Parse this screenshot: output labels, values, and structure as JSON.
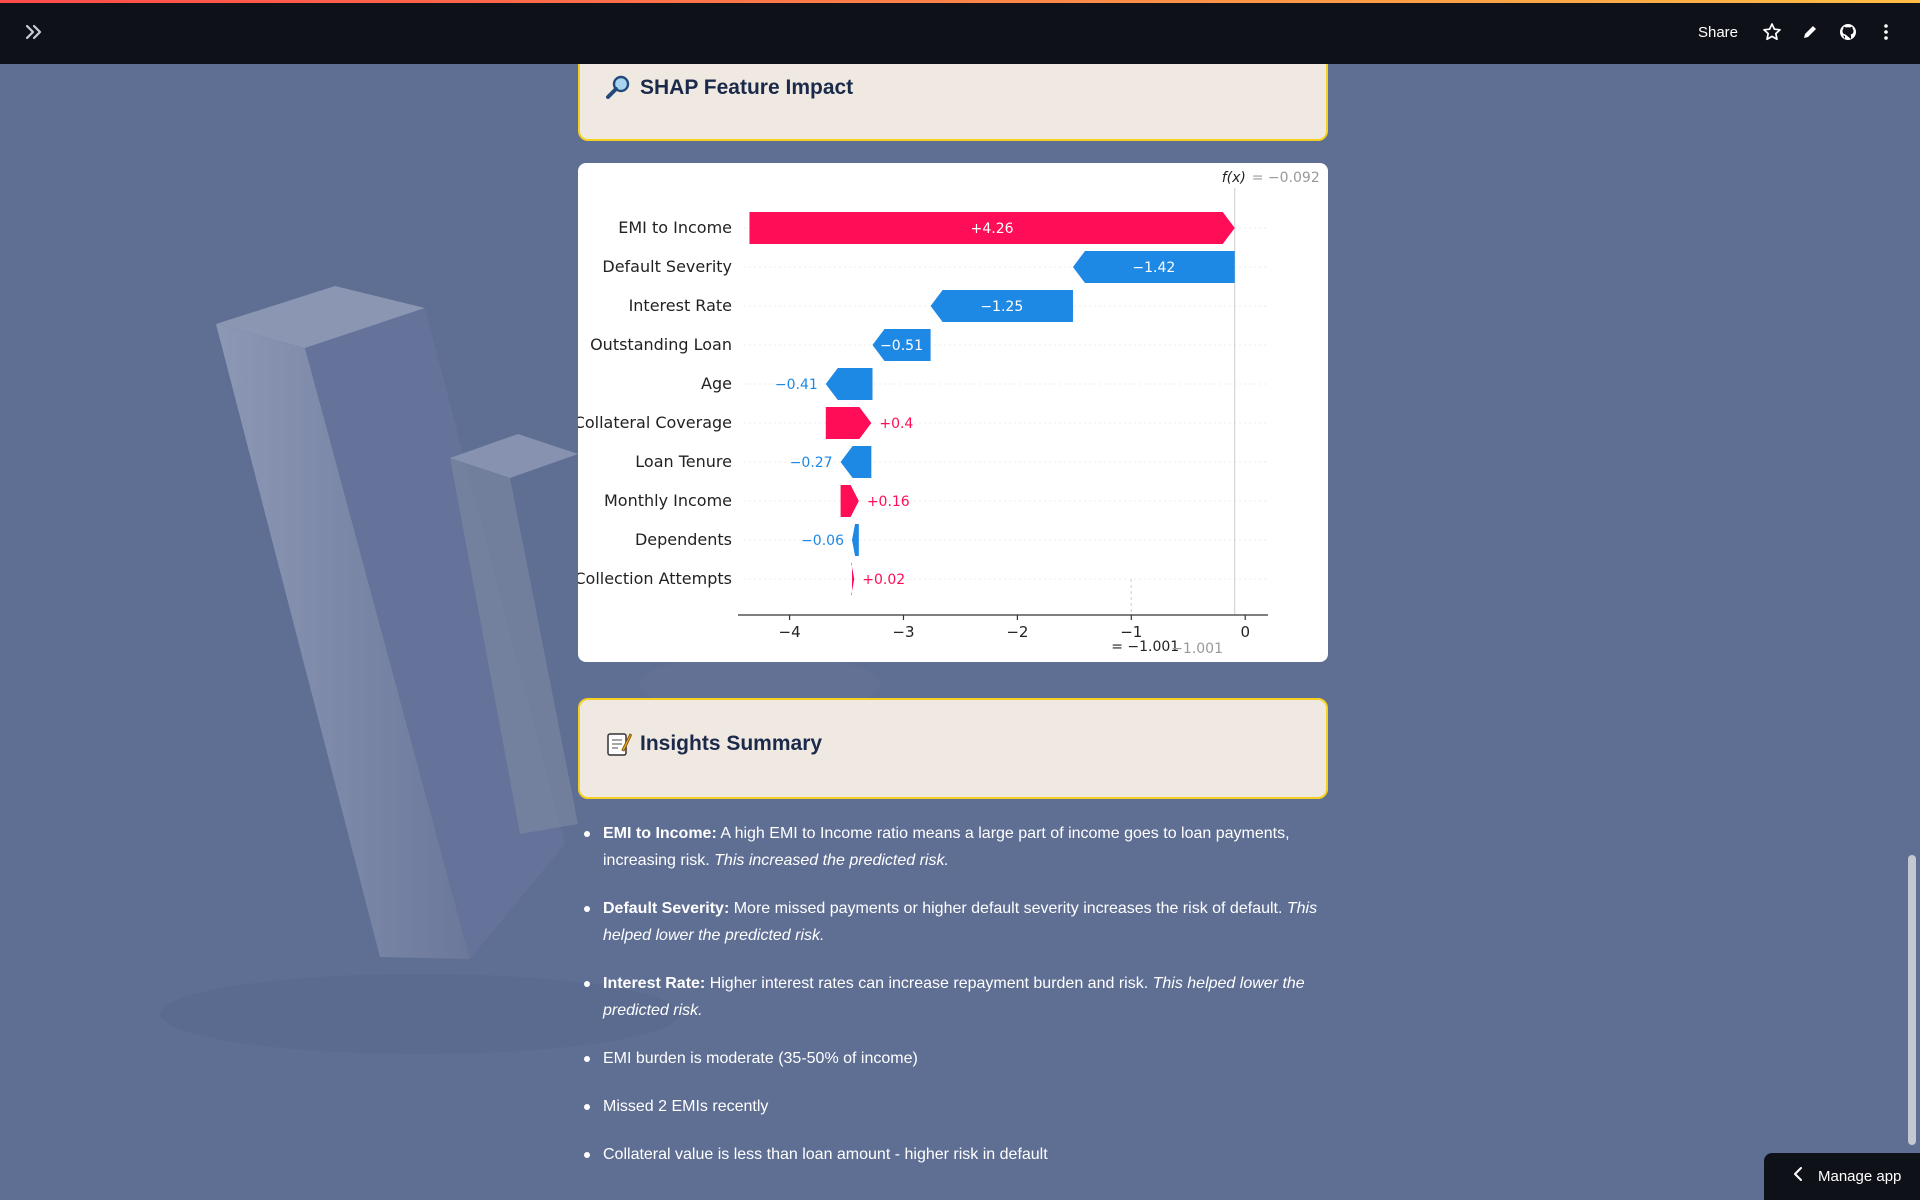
{
  "topbar": {
    "share_label": "Share",
    "icons": [
      "expand-sidebar-icon",
      "star-icon",
      "edit-icon",
      "github-icon",
      "more-icon"
    ]
  },
  "shap_card": {
    "title": "SHAP Feature Impact",
    "icon": "magnifier-icon"
  },
  "chart_data": {
    "type": "bar",
    "subtype": "waterfall",
    "title": "",
    "fx_label": "f(x)",
    "fx_value": "= −0.092",
    "base_label": "= −1.001",
    "base_value_text": "−1.001",
    "base_value": -1.001,
    "final_value": -0.092,
    "xlim": [
      -4.4,
      0.2
    ],
    "xticks": [
      -4,
      -3,
      -2,
      -1,
      0
    ],
    "xtick_labels": [
      "−4",
      "−3",
      "−2",
      "−1",
      "0"
    ],
    "categories": [
      "EMI to Income",
      "Default Severity",
      "Interest Rate",
      "Outstanding Loan",
      "Age",
      "Collateral Coverage",
      "Loan Tenure",
      "Monthly Income",
      "Dependents",
      "Collection Attempts"
    ],
    "values": [
      4.26,
      -1.42,
      -1.25,
      -0.51,
      -0.41,
      0.4,
      -0.27,
      0.16,
      -0.06,
      0.02
    ],
    "value_labels": [
      "+4.26",
      "−1.42",
      "−1.25",
      "−0.51",
      "−0.41",
      "+0.4",
      "−0.27",
      "+0.16",
      "−0.06",
      "+0.02"
    ],
    "bar_starts": [
      -4.352,
      -0.092,
      -1.512,
      -2.762,
      -3.272,
      -3.682,
      -3.282,
      -3.552,
      -3.392,
      -3.452
    ],
    "colors": {
      "positive": "#ff0d57",
      "negative": "#1e88e5"
    },
    "grid": false
  },
  "insights_card": {
    "title": "Insights Summary",
    "icon": "memo-icon"
  },
  "insights": [
    {
      "bold": "EMI to Income:",
      "text": " A high EMI to Income ratio means a large part of income goes to loan payments, increasing risk. ",
      "italic": "This increased the predicted risk."
    },
    {
      "bold": "Default Severity:",
      "text": " More missed payments or higher default severity increases the risk of default. ",
      "italic": "This helped lower the predicted risk."
    },
    {
      "bold": "Interest Rate:",
      "text": " Higher interest rates can increase repayment burden and risk. ",
      "italic": "This helped lower the predicted risk."
    },
    {
      "bold": "",
      "text": "EMI burden is moderate (35-50% of income)",
      "italic": ""
    },
    {
      "bold": "",
      "text": "Missed 2 EMIs recently",
      "italic": ""
    },
    {
      "bold": "",
      "text": "Collateral value is less than loan amount - higher risk in default",
      "italic": ""
    }
  ],
  "manage_app": {
    "label": "Manage app"
  }
}
